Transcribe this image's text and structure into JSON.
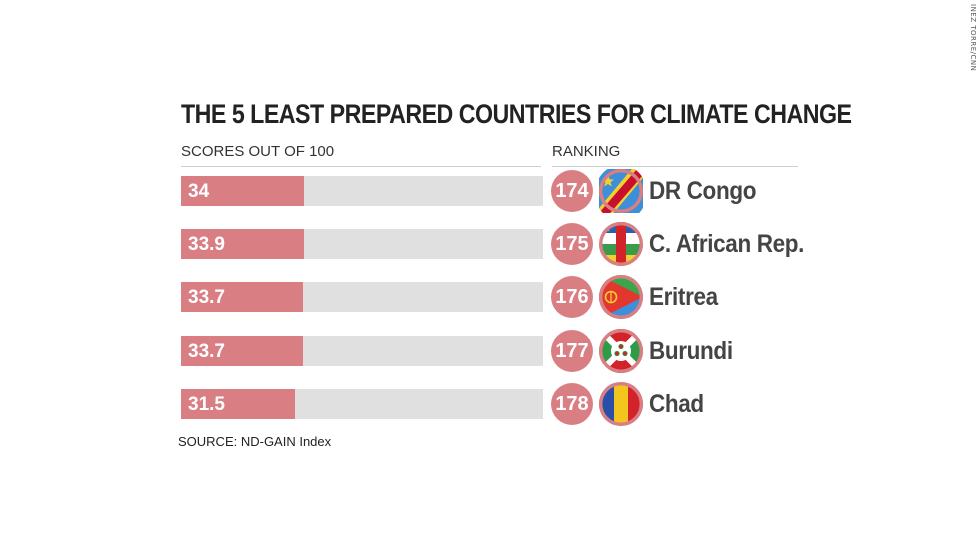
{
  "credit": "INEZ TORRE/CNN",
  "chart_data": {
    "type": "bar",
    "title": "THE 5 LEAST PREPARED COUNTRIES FOR CLIMATE CHANGE",
    "scores_header": "SCORES OUT OF 100",
    "ranking_header": "RANKING",
    "xlim": [
      0,
      100
    ],
    "rows": [
      {
        "score": 34,
        "score_label": "34",
        "rank": "174",
        "country": "DR Congo",
        "flag": "dr-congo-flag-icon"
      },
      {
        "score": 33.9,
        "score_label": "33.9",
        "rank": "175",
        "country": "C. African Rep.",
        "flag": "central-african-republic-flag-icon"
      },
      {
        "score": 33.7,
        "score_label": "33.7",
        "rank": "176",
        "country": "Eritrea",
        "flag": "eritrea-flag-icon"
      },
      {
        "score": 33.7,
        "score_label": "33.7",
        "rank": "177",
        "country": "Burundi",
        "flag": "burundi-flag-icon"
      },
      {
        "score": 31.5,
        "score_label": "31.5",
        "rank": "178",
        "country": "Chad",
        "flag": "chad-flag-icon"
      }
    ],
    "source": "SOURCE: ND-GAIN Index"
  },
  "colors": {
    "bar": "#d97f84",
    "track": "#e0e0e0",
    "rank_circle": "#d97f84",
    "title": "#222222"
  }
}
